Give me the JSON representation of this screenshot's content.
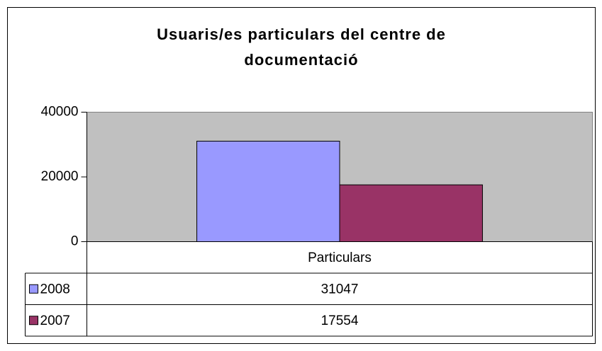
{
  "chart_data": {
    "type": "bar",
    "title_lines": [
      "Usuaris/es particulars del centre de",
      "documentació"
    ],
    "categories": [
      "Particulars"
    ],
    "series": [
      {
        "name": "2008",
        "color": "#9999ff",
        "values": [
          31047
        ]
      },
      {
        "name": "2007",
        "color": "#993366",
        "values": [
          17554
        ]
      }
    ],
    "ylim": [
      0,
      40000
    ],
    "yticks": [
      0,
      20000,
      40000
    ],
    "plot_background": "#c0c0c0",
    "data_table": true
  }
}
